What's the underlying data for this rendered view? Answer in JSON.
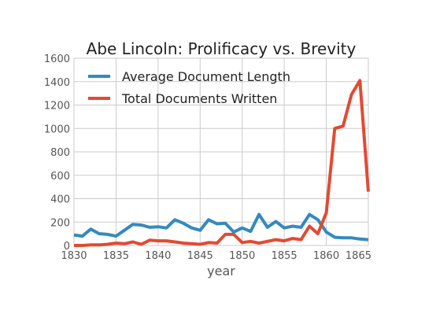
{
  "chart_data": {
    "type": "line",
    "title": "Abe Lincoln: Prolificacy vs. Brevity",
    "xlabel": "year",
    "ylabel": "",
    "xlim": [
      1830,
      1865
    ],
    "ylim": [
      0,
      1600
    ],
    "xticks": [
      1830,
      1835,
      1840,
      1845,
      1850,
      1855,
      1860,
      1865
    ],
    "yticks": [
      0,
      200,
      400,
      600,
      800,
      1000,
      1200,
      1400,
      1600
    ],
    "grid": true,
    "legend": "top-left",
    "x": [
      1830,
      1831,
      1832,
      1833,
      1834,
      1835,
      1836,
      1837,
      1838,
      1839,
      1840,
      1841,
      1842,
      1843,
      1844,
      1845,
      1846,
      1847,
      1848,
      1849,
      1850,
      1851,
      1852,
      1853,
      1854,
      1855,
      1856,
      1857,
      1858,
      1859,
      1860,
      1861,
      1862,
      1863,
      1864,
      1865
    ],
    "series": [
      {
        "name": "Average Document Length",
        "color": "#348ABD",
        "values": [
          90,
          80,
          140,
          100,
          95,
          80,
          130,
          180,
          175,
          155,
          160,
          150,
          220,
          190,
          150,
          130,
          220,
          185,
          190,
          115,
          150,
          120,
          265,
          155,
          205,
          150,
          165,
          155,
          265,
          220,
          115,
          70,
          65,
          65,
          55,
          50
        ]
      },
      {
        "name": "Total Documents Written",
        "color": "#E24A33",
        "values": [
          0,
          0,
          5,
          5,
          10,
          20,
          15,
          30,
          10,
          45,
          40,
          40,
          30,
          20,
          15,
          10,
          25,
          20,
          95,
          95,
          25,
          35,
          20,
          35,
          50,
          40,
          60,
          50,
          165,
          100,
          280,
          1000,
          1020,
          1290,
          1410,
          460
        ]
      }
    ]
  }
}
